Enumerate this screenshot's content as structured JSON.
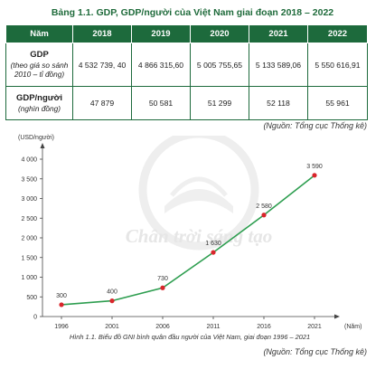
{
  "table": {
    "title": "Bảng 1.1. GDP, GDP/người của Việt Nam giai đoạn 2018 – 2022",
    "header": [
      "Năm",
      "2018",
      "2019",
      "2020",
      "2021",
      "2022"
    ],
    "rows": [
      {
        "label": "GDP",
        "sublabel_1": "(theo giá so sánh",
        "sublabel_2": "2010 – tỉ đồng)",
        "values": [
          "4 532 739, 40",
          "4 866 315,60",
          "5 005 755,65",
          "5 133 589,06",
          "5 550 616,91"
        ]
      },
      {
        "label": "GDP/người",
        "sublabel_1": "(nghìn đồng)",
        "values": [
          "47 879",
          "50 581",
          "51 299",
          "52 118",
          "55 961"
        ]
      }
    ],
    "source": "(Nguồn: Tổng cục Thống kê)"
  },
  "watermark": {
    "text": "Chân trời sáng tạo"
  },
  "chart_data": {
    "type": "line",
    "x": [
      1996,
      2001,
      2006,
      2011,
      2016,
      2021
    ],
    "values": [
      300,
      400,
      730,
      1630,
      2580,
      3590
    ],
    "data_labels": [
      "300",
      "400",
      "730",
      "1 630",
      "2 580",
      "3 590"
    ],
    "ylabel": "(USD/người)",
    "xlabel": "(Năm)",
    "yticks": [
      "0",
      "500",
      "1 000",
      "1 500",
      "2 000",
      "2 500",
      "3 000",
      "3 500",
      "4 000"
    ],
    "ylim": [
      0,
      4000
    ],
    "line_color": "#2e9e50",
    "point_color": "#d9262c",
    "grid": false
  },
  "caption": "Hình 1.1. Biểu đồ GNI bình quân đầu người của Việt Nam, giai đoạn 1996 – 2021",
  "chart_source": "(Nguồn: Tổng cục Thống kê)"
}
